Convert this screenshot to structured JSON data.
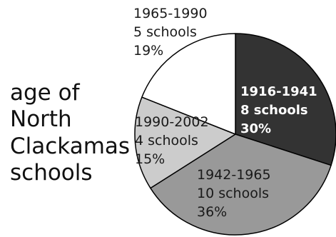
{
  "chart_data": {
    "type": "pie",
    "title_lines": [
      "age of",
      "North",
      "Clackamas",
      "schools"
    ],
    "slices": [
      {
        "period": "1916-1941",
        "count_label": "8 schools",
        "percent_label": "30%",
        "value": 30,
        "color": "#333333",
        "label_color": "#ffffff",
        "label_bold": true
      },
      {
        "period": "1942-1965",
        "count_label": "10 schools",
        "percent_label": "36%",
        "value": 36,
        "color": "#999999",
        "label_color": "#1a1a1a",
        "label_bold": false
      },
      {
        "period": "1990-2002",
        "count_label": "4 schools",
        "percent_label": "15%",
        "value": 15,
        "color": "#cccccc",
        "label_color": "#1a1a1a",
        "label_bold": false
      },
      {
        "period": "1965-1990",
        "count_label": "5 schools",
        "percent_label": "19%",
        "value": 19,
        "color": "#ffffff",
        "label_color": "#1a1a1a",
        "label_bold": false
      }
    ],
    "start_angle_deg": 0,
    "direction": "clockwise",
    "legend": "none"
  }
}
